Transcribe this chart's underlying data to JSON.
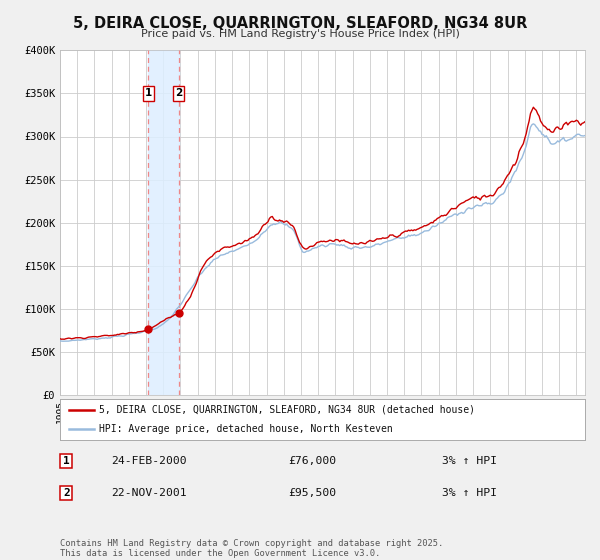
{
  "title": "5, DEIRA CLOSE, QUARRINGTON, SLEAFORD, NG34 8UR",
  "subtitle": "Price paid vs. HM Land Registry's House Price Index (HPI)",
  "background_color": "#f0f0f0",
  "plot_bg_color": "#ffffff",
  "grid_color": "#cccccc",
  "red_line_color": "#cc0000",
  "blue_line_color": "#99bbdd",
  "sale_marker_color": "#cc0000",
  "shade_color": "#ddeeff",
  "dashed_line_color": "#ee8888",
  "legend1_label": "5, DEIRA CLOSE, QUARRINGTON, SLEAFORD, NG34 8UR (detached house)",
  "legend2_label": "HPI: Average price, detached house, North Kesteven",
  "transaction1_date": "24-FEB-2000",
  "transaction1_price": 76000,
  "transaction2_date": "22-NOV-2001",
  "transaction2_price": 95500,
  "transaction1_hpi": "3% ↑ HPI",
  "transaction2_hpi": "3% ↑ HPI",
  "footer": "Contains HM Land Registry data © Crown copyright and database right 2025.\nThis data is licensed under the Open Government Licence v3.0.",
  "xmin": 1995.0,
  "xmax": 2025.5,
  "ymin": 0,
  "ymax": 400000,
  "yticks": [
    0,
    50000,
    100000,
    150000,
    200000,
    250000,
    300000,
    350000,
    400000
  ],
  "ytick_labels": [
    "£0",
    "£50K",
    "£100K",
    "£150K",
    "£200K",
    "£250K",
    "£300K",
    "£350K",
    "£400K"
  ],
  "transaction1_x": 2000.14,
  "transaction2_x": 2001.9,
  "shade_x1": 2000.14,
  "shade_x2": 2001.9
}
